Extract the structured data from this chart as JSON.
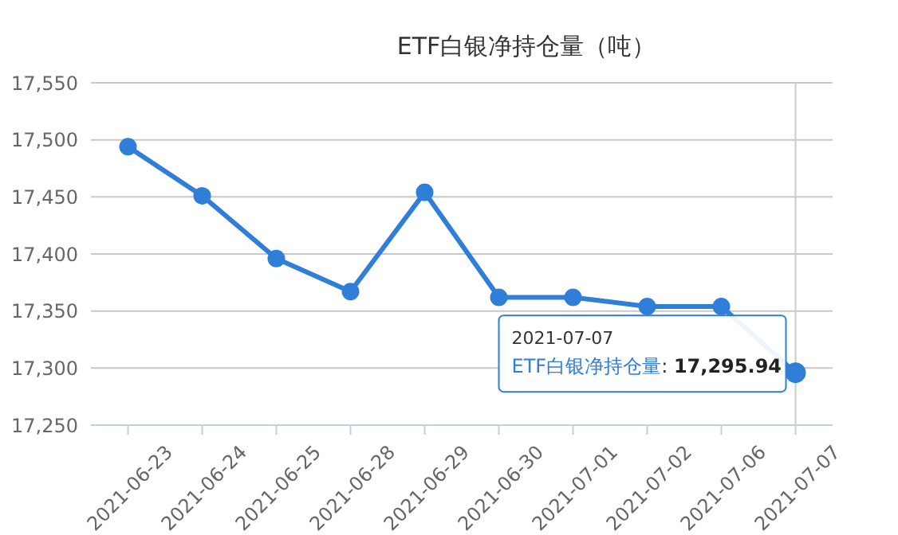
{
  "chart_data": {
    "type": "line",
    "title": "ETF白银净持仓量（吨）",
    "categories": [
      "2021-06-23",
      "2021-06-24",
      "2021-06-25",
      "2021-06-28",
      "2021-06-29",
      "2021-06-30",
      "2021-07-01",
      "2021-07-02",
      "2021-07-06",
      "2021-07-07"
    ],
    "series": [
      {
        "name": "ETF白银净持仓量",
        "color": "#2f7ed8",
        "values": [
          17494,
          17451,
          17396,
          17367,
          17454,
          17362,
          17362,
          17354,
          17354,
          17295.94
        ],
        "value_labels": [
          null,
          null,
          null,
          null,
          null,
          null,
          null,
          null,
          null,
          "17,295.94"
        ]
      }
    ],
    "ylim": [
      17250,
      17550
    ],
    "yticks": [
      {
        "value": 17250,
        "label": "17,250"
      },
      {
        "value": 17300,
        "label": "17,300"
      },
      {
        "value": 17350,
        "label": "17,350"
      },
      {
        "value": 17400,
        "label": "17,400"
      },
      {
        "value": 17450,
        "label": "17,450"
      },
      {
        "value": 17500,
        "label": "17,500"
      },
      {
        "value": 17550,
        "label": "17,550"
      }
    ],
    "grid": "y",
    "legend": false,
    "marker": "circle",
    "line_style": "solid",
    "ref_lines": [
      {
        "axis": "x",
        "value": "2021-07-07",
        "color": "#cccccc"
      }
    ],
    "annotations": [
      ":"
    ]
  }
}
